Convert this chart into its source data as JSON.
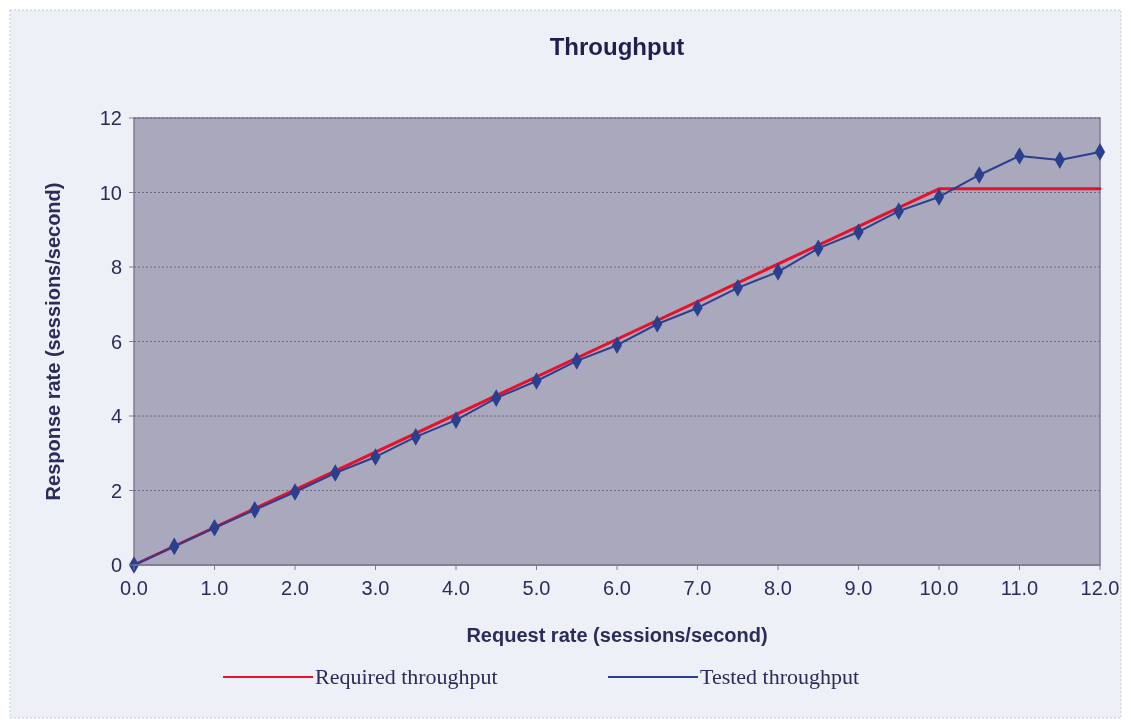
{
  "chart_data": {
    "type": "line",
    "title": "Throughput",
    "xlabel": "Request rate (sessions/second)",
    "ylabel": "Response rate (sessions/second)",
    "xlim": [
      0,
      12
    ],
    "xticks": [
      {
        "value": 0,
        "label": "0.0"
      },
      {
        "value": 1,
        "label": "1.0"
      },
      {
        "value": 2,
        "label": "2.0"
      },
      {
        "value": 3,
        "label": "3.0"
      },
      {
        "value": 4,
        "label": "4.0"
      },
      {
        "value": 5,
        "label": "5.0"
      },
      {
        "value": 6,
        "label": "6.0"
      },
      {
        "value": 7,
        "label": "7.0"
      },
      {
        "value": 8,
        "label": "8.0"
      },
      {
        "value": 9,
        "label": "9.0"
      },
      {
        "value": 10,
        "label": "10.0"
      },
      {
        "value": 11,
        "label": "11.0"
      },
      {
        "value": 12,
        "label": "12.0"
      }
    ],
    "ylim": [
      0,
      12
    ],
    "yticks": [
      0,
      2,
      4,
      6,
      8,
      10,
      12
    ],
    "grid": "y",
    "legend": "bottom",
    "series": [
      {
        "name": "Required throughput",
        "color": "#e8102a",
        "marker": "none",
        "x": [
          0,
          10,
          12
        ],
        "values": [
          0,
          10.1,
          10.1
        ]
      },
      {
        "name": "Tested throughput",
        "color": "#2b3f8f",
        "marker": "diamond",
        "x": [
          0,
          0.5,
          1,
          1.5,
          2,
          2.5,
          3,
          3.5,
          4,
          4.5,
          5,
          5.5,
          6,
          6.5,
          7,
          7.5,
          8,
          8.5,
          9,
          9.5,
          10,
          10.5,
          11,
          11.5,
          12
        ],
        "values": [
          0,
          0.5,
          1,
          1.48,
          1.96,
          2.47,
          2.9,
          3.44,
          3.89,
          4.48,
          4.94,
          5.48,
          5.9,
          6.47,
          6.9,
          7.44,
          7.87,
          8.5,
          8.94,
          9.5,
          9.88,
          10.47,
          10.98,
          10.87,
          11.09
        ]
      }
    ]
  }
}
